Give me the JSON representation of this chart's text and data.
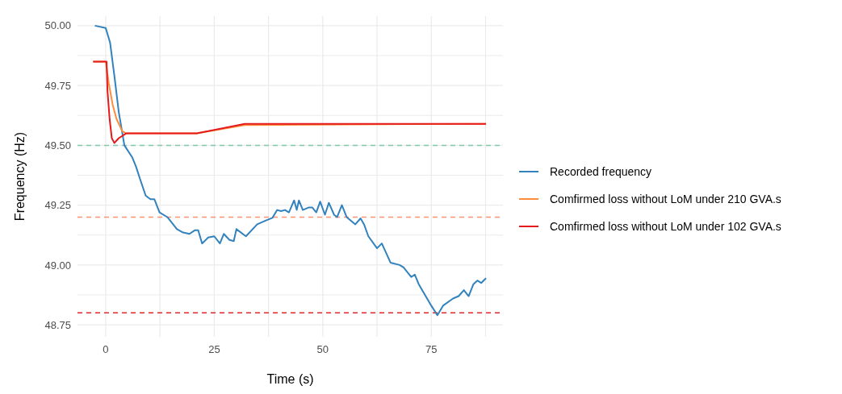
{
  "chart_data": {
    "type": "line",
    "xlabel": "Time (s)",
    "ylabel": "Frequency (Hz)",
    "xlim": [
      -6.5,
      91.5
    ],
    "ylim": [
      48.7,
      50.04
    ],
    "xticks": [
      0,
      {
        "value": 12.5,
        "label": null
      },
      25,
      {
        "value": 37.5,
        "label": null
      },
      50,
      {
        "value": 62.5,
        "label": null
      },
      75,
      {
        "value": 87.5,
        "label": null
      }
    ],
    "yticks": [
      {
        "value": 48.75,
        "label": "48.75"
      },
      {
        "value": 48.875,
        "label": null
      },
      {
        "value": 49,
        "label": "49.00"
      },
      {
        "value": 49.125,
        "label": null
      },
      {
        "value": 49.25,
        "label": "49.25"
      },
      {
        "value": 49.375,
        "label": null
      },
      {
        "value": 49.5,
        "label": "49.50"
      },
      {
        "value": 49.625,
        "label": null
      },
      {
        "value": 49.75,
        "label": "49.75"
      },
      {
        "value": 49.875,
        "label": null
      },
      {
        "value": 50,
        "label": "50.00"
      }
    ],
    "grid": true,
    "legend": "right",
    "marker": "none",
    "line_style": "solid",
    "series": [
      {
        "name": "Recorded frequency",
        "color": "#3182bd",
        "x": [
          -2.5,
          0,
          1,
          2,
          3,
          4.3,
          6.1,
          7,
          7.9,
          9.2,
          10.3,
          11.2,
          12.4,
          14.2,
          16.4,
          17.8,
          19.3,
          20.5,
          21.3,
          22.2,
          23.6,
          25,
          26.3,
          27.2,
          28.5,
          29.5,
          30.1,
          32.3,
          34.9,
          36.8,
          38.4,
          39.5,
          40.4,
          41.3,
          42.2,
          43.4,
          44,
          44.5,
          45.4,
          46.7,
          47.6,
          48.5,
          49.4,
          50.5,
          51.4,
          52.6,
          53.3,
          54.4,
          55.5,
          57.5,
          58.7,
          59.5,
          60.5,
          62.5,
          63.6,
          65.6,
          67.7,
          68.6,
          69.5,
          70.4,
          71.2,
          72.1,
          75,
          76.4,
          77.7,
          80,
          81.3,
          82.5,
          83.6,
          84.7,
          85.6,
          86.5,
          87.6
        ],
        "values": [
          50,
          49.99,
          49.93,
          49.79,
          49.64,
          49.5,
          49.45,
          49.41,
          49.36,
          49.29,
          49.275,
          49.275,
          49.22,
          49.2,
          49.15,
          49.136,
          49.13,
          49.145,
          49.145,
          49.09,
          49.115,
          49.12,
          49.09,
          49.13,
          49.105,
          49.1,
          49.15,
          49.12,
          49.17,
          49.185,
          49.197,
          49.23,
          49.225,
          49.23,
          49.22,
          49.27,
          49.23,
          49.27,
          49.23,
          49.24,
          49.24,
          49.22,
          49.265,
          49.21,
          49.26,
          49.21,
          49.2,
          49.25,
          49.2,
          49.17,
          49.195,
          49.17,
          49.12,
          49.07,
          49.09,
          49.01,
          49,
          48.99,
          48.97,
          48.95,
          48.96,
          48.92,
          48.83,
          48.79,
          48.83,
          48.86,
          48.87,
          48.895,
          48.87,
          48.92,
          48.935,
          48.925,
          48.945
        ]
      },
      {
        "name": "Comfirmed loss without LoM under 210 GVA.s",
        "color": "#fd8d3c",
        "x": [
          -2.9,
          0,
          0.7,
          1.6,
          2.5,
          3.8,
          4.7,
          21,
          32,
          87.6
        ],
        "values": [
          49.85,
          49.85,
          49.76,
          49.67,
          49.61,
          49.56,
          49.55,
          49.55,
          49.585,
          49.59
        ]
      },
      {
        "name": "Comfirmed loss without LoM under 102 GVA.s",
        "color": "#e41a1c",
        "x": [
          -2.9,
          0.2,
          0.4,
          0.9,
          1.4,
          2,
          3,
          4.7,
          21,
          32,
          87.6
        ],
        "values": [
          49.85,
          49.85,
          49.73,
          49.61,
          49.53,
          49.51,
          49.53,
          49.55,
          49.55,
          49.59,
          49.59
        ]
      }
    ],
    "ref_lines": [
      {
        "axis": "y",
        "value": 49.5,
        "color": "#80c9a8",
        "line_style": "dashed"
      },
      {
        "axis": "y",
        "value": 49.2,
        "color": "#fc9272",
        "line_style": "dashed"
      },
      {
        "axis": "y",
        "value": 48.8,
        "color": "#e3262b",
        "line_style": "dashed"
      }
    ]
  }
}
